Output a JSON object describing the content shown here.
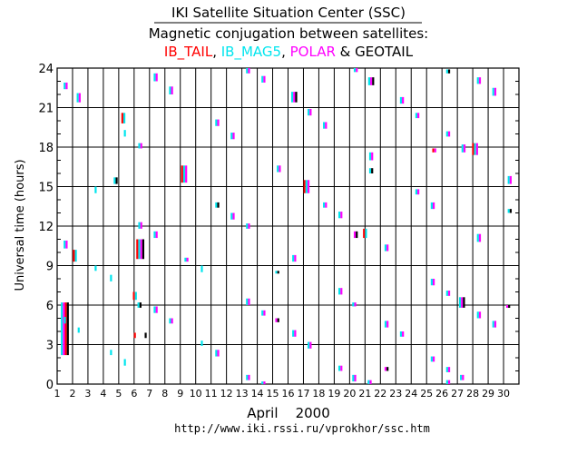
{
  "header": {
    "title": "IKI Satellite Situation Center (SSC)",
    "subtitle": "Magnetic conjugation between satellites:",
    "legend_sep1": ",",
    "legend_sep2": ",",
    "legend_amp": " & "
  },
  "chart_data": {
    "type": "scatter",
    "xlabel": "April    2000",
    "ylabel": "Universal time  (hours)",
    "footer_url": "http://www.iki.rssi.ru/vprokhor/ssc.htm",
    "xlim": [
      1,
      31
    ],
    "ylim": [
      0,
      24
    ],
    "xticks": [
      1,
      2,
      3,
      4,
      5,
      6,
      7,
      8,
      9,
      10,
      11,
      12,
      13,
      14,
      15,
      16,
      17,
      18,
      19,
      20,
      21,
      22,
      23,
      24,
      25,
      26,
      27,
      28,
      29,
      30
    ],
    "yticks": [
      0,
      3,
      6,
      9,
      12,
      15,
      18,
      21,
      24
    ],
    "grid": true,
    "series": [
      {
        "name": "IB_TAIL",
        "color": "#ff0000"
      },
      {
        "name": "IB_MAG5",
        "color": "#00e5ee"
      },
      {
        "name": "POLAR",
        "color": "#ff00ff"
      },
      {
        "name": "GEOTAIL",
        "color": "#000000"
      }
    ],
    "events": [
      {
        "day": 1.5,
        "start": 2.2,
        "end": 6.2,
        "sats": [
          "IB_MAG5",
          "POLAR",
          "IB_TAIL",
          "GEOTAIL"
        ]
      },
      {
        "day": 1.5,
        "start": 4.6,
        "end": 5.1,
        "sats": [
          "IB_MAG5"
        ]
      },
      {
        "day": 1.55,
        "start": 10.3,
        "end": 10.9,
        "sats": [
          "IB_MAG5",
          "POLAR"
        ]
      },
      {
        "day": 1.55,
        "start": 22.4,
        "end": 22.9,
        "sats": [
          "IB_MAG5",
          "POLAR"
        ]
      },
      {
        "day": 2.15,
        "start": 9.3,
        "end": 10.2,
        "sats": [
          "IB_TAIL",
          "IB_MAG5"
        ]
      },
      {
        "day": 2.4,
        "start": 3.9,
        "end": 4.3,
        "sats": [
          "IB_MAG5"
        ]
      },
      {
        "day": 2.4,
        "start": 21.4,
        "end": 22.1,
        "sats": [
          "IB_MAG5",
          "POLAR"
        ]
      },
      {
        "day": 3.5,
        "start": 8.6,
        "end": 9.0,
        "sats": [
          "IB_MAG5"
        ]
      },
      {
        "day": 3.5,
        "start": 14.5,
        "end": 15.0,
        "sats": [
          "IB_MAG5"
        ]
      },
      {
        "day": 4.5,
        "start": 2.2,
        "end": 2.6,
        "sats": [
          "IB_MAG5"
        ]
      },
      {
        "day": 4.5,
        "start": 7.8,
        "end": 8.3,
        "sats": [
          "IB_MAG5"
        ]
      },
      {
        "day": 4.8,
        "start": 15.2,
        "end": 15.7,
        "sats": [
          "IB_MAG5",
          "GEOTAIL"
        ]
      },
      {
        "day": 5.3,
        "start": 19.8,
        "end": 20.6,
        "sats": [
          "IB_TAIL",
          "IB_MAG5"
        ]
      },
      {
        "day": 5.4,
        "start": 1.4,
        "end": 1.9,
        "sats": [
          "IB_MAG5"
        ]
      },
      {
        "day": 5.4,
        "start": 18.8,
        "end": 19.3,
        "sats": [
          "IB_MAG5"
        ]
      },
      {
        "day": 6.05,
        "start": 6.4,
        "end": 7.0,
        "sats": [
          "IB_TAIL",
          "IB_MAG5"
        ]
      },
      {
        "day": 6.05,
        "start": 3.5,
        "end": 3.9,
        "sats": [
          "IB_TAIL"
        ]
      },
      {
        "day": 6.35,
        "start": 5.8,
        "end": 6.2,
        "sats": [
          "IB_MAG5",
          "GEOTAIL"
        ]
      },
      {
        "day": 6.4,
        "start": 9.5,
        "end": 11.0,
        "sats": [
          "IB_TAIL",
          "IB_MAG5",
          "POLAR",
          "GEOTAIL"
        ]
      },
      {
        "day": 6.4,
        "start": 11.8,
        "end": 12.3,
        "sats": [
          "IB_MAG5",
          "POLAR"
        ]
      },
      {
        "day": 6.4,
        "start": 17.9,
        "end": 18.3,
        "sats": [
          "IB_MAG5",
          "POLAR"
        ]
      },
      {
        "day": 6.75,
        "start": 3.5,
        "end": 3.9,
        "sats": [
          "GEOTAIL"
        ]
      },
      {
        "day": 7.4,
        "start": 5.4,
        "end": 5.9,
        "sats": [
          "IB_MAG5",
          "POLAR"
        ]
      },
      {
        "day": 7.4,
        "start": 11.1,
        "end": 11.6,
        "sats": [
          "IB_MAG5",
          "POLAR"
        ]
      },
      {
        "day": 7.4,
        "start": 23.0,
        "end": 23.6,
        "sats": [
          "IB_MAG5",
          "POLAR"
        ]
      },
      {
        "day": 8.4,
        "start": 4.6,
        "end": 5.0,
        "sats": [
          "IB_MAG5",
          "POLAR"
        ]
      },
      {
        "day": 8.4,
        "start": 22.0,
        "end": 22.6,
        "sats": [
          "IB_MAG5",
          "POLAR"
        ]
      },
      {
        "day": 9.25,
        "start": 15.3,
        "end": 16.6,
        "sats": [
          "IB_TAIL",
          "IB_MAG5",
          "POLAR"
        ]
      },
      {
        "day": 9.4,
        "start": 9.3,
        "end": 9.6,
        "sats": [
          "IB_MAG5",
          "POLAR"
        ]
      },
      {
        "day": 10.4,
        "start": 8.5,
        "end": 9.0,
        "sats": [
          "IB_MAG5"
        ]
      },
      {
        "day": 10.4,
        "start": 2.9,
        "end": 3.3,
        "sats": [
          "IB_MAG5"
        ]
      },
      {
        "day": 11.4,
        "start": 2.1,
        "end": 2.6,
        "sats": [
          "IB_MAG5",
          "POLAR"
        ]
      },
      {
        "day": 11.4,
        "start": 13.4,
        "end": 13.8,
        "sats": [
          "IB_MAG5",
          "GEOTAIL"
        ]
      },
      {
        "day": 11.4,
        "start": 19.6,
        "end": 20.1,
        "sats": [
          "IB_MAG5",
          "POLAR"
        ]
      },
      {
        "day": 12.4,
        "start": 12.5,
        "end": 13.0,
        "sats": [
          "IB_MAG5",
          "POLAR"
        ]
      },
      {
        "day": 12.4,
        "start": 18.6,
        "end": 19.1,
        "sats": [
          "IB_MAG5",
          "POLAR"
        ]
      },
      {
        "day": 13.4,
        "start": 6.0,
        "end": 6.5,
        "sats": [
          "IB_MAG5",
          "POLAR"
        ]
      },
      {
        "day": 13.4,
        "start": 11.8,
        "end": 12.2,
        "sats": [
          "IB_MAG5",
          "POLAR"
        ]
      },
      {
        "day": 13.4,
        "start": 0.3,
        "end": 0.7,
        "sats": [
          "IB_MAG5",
          "POLAR"
        ]
      },
      {
        "day": 13.4,
        "start": 23.6,
        "end": 24.0,
        "sats": [
          "IB_MAG5",
          "POLAR"
        ]
      },
      {
        "day": 14.4,
        "start": 5.2,
        "end": 5.6,
        "sats": [
          "IB_MAG5",
          "POLAR"
        ]
      },
      {
        "day": 14.4,
        "start": 22.9,
        "end": 23.4,
        "sats": [
          "IB_MAG5",
          "POLAR"
        ]
      },
      {
        "day": 14.4,
        "start": 0.0,
        "end": 0.2,
        "sats": [
          "IB_MAG5",
          "POLAR"
        ]
      },
      {
        "day": 15.3,
        "start": 8.4,
        "end": 8.6,
        "sats": [
          "IB_MAG5",
          "GEOTAIL"
        ]
      },
      {
        "day": 15.3,
        "start": 4.7,
        "end": 5.0,
        "sats": [
          "POLAR",
          "GEOTAIL"
        ]
      },
      {
        "day": 15.4,
        "start": 16.1,
        "end": 16.6,
        "sats": [
          "IB_MAG5",
          "POLAR"
        ]
      },
      {
        "day": 16.4,
        "start": 3.6,
        "end": 4.1,
        "sats": [
          "IB_MAG5",
          "POLAR"
        ]
      },
      {
        "day": 16.4,
        "start": 9.3,
        "end": 9.8,
        "sats": [
          "IB_MAG5",
          "POLAR"
        ]
      },
      {
        "day": 16.4,
        "start": 21.4,
        "end": 22.2,
        "sats": [
          "IB_MAG5",
          "POLAR",
          "GEOTAIL"
        ]
      },
      {
        "day": 17.2,
        "start": 14.5,
        "end": 15.5,
        "sats": [
          "IB_TAIL",
          "IB_MAG5",
          "POLAR"
        ]
      },
      {
        "day": 17.4,
        "start": 2.7,
        "end": 3.2,
        "sats": [
          "IB_MAG5",
          "POLAR"
        ]
      },
      {
        "day": 17.4,
        "start": 20.4,
        "end": 20.9,
        "sats": [
          "IB_MAG5",
          "POLAR"
        ]
      },
      {
        "day": 18.4,
        "start": 13.4,
        "end": 13.8,
        "sats": [
          "IB_MAG5",
          "POLAR"
        ]
      },
      {
        "day": 18.4,
        "start": 19.4,
        "end": 19.9,
        "sats": [
          "IB_MAG5",
          "POLAR"
        ]
      },
      {
        "day": 19.4,
        "start": 1.0,
        "end": 1.4,
        "sats": [
          "IB_MAG5",
          "POLAR"
        ]
      },
      {
        "day": 19.4,
        "start": 6.8,
        "end": 7.3,
        "sats": [
          "IB_MAG5",
          "POLAR"
        ]
      },
      {
        "day": 19.4,
        "start": 12.6,
        "end": 13.1,
        "sats": [
          "IB_MAG5",
          "POLAR"
        ]
      },
      {
        "day": 20.3,
        "start": 0.2,
        "end": 0.7,
        "sats": [
          "IB_MAG5",
          "POLAR"
        ]
      },
      {
        "day": 20.3,
        "start": 5.9,
        "end": 6.2,
        "sats": [
          "IB_MAG5",
          "POLAR"
        ]
      },
      {
        "day": 20.4,
        "start": 11.1,
        "end": 11.6,
        "sats": [
          "POLAR",
          "GEOTAIL"
        ]
      },
      {
        "day": 20.4,
        "start": 23.7,
        "end": 24.0,
        "sats": [
          "IB_MAG5",
          "POLAR"
        ]
      },
      {
        "day": 21.0,
        "start": 11.1,
        "end": 11.8,
        "sats": [
          "IB_TAIL",
          "IB_MAG5"
        ]
      },
      {
        "day": 21.3,
        "start": 0.0,
        "end": 0.3,
        "sats": [
          "IB_MAG5",
          "POLAR"
        ]
      },
      {
        "day": 21.4,
        "start": 16.0,
        "end": 16.4,
        "sats": [
          "IB_MAG5",
          "GEOTAIL"
        ]
      },
      {
        "day": 21.4,
        "start": 17.0,
        "end": 17.6,
        "sats": [
          "IB_MAG5",
          "POLAR"
        ]
      },
      {
        "day": 21.4,
        "start": 22.7,
        "end": 23.3,
        "sats": [
          "IB_MAG5",
          "POLAR",
          "GEOTAIL"
        ]
      },
      {
        "day": 22.4,
        "start": 4.3,
        "end": 4.8,
        "sats": [
          "IB_MAG5",
          "POLAR"
        ]
      },
      {
        "day": 22.4,
        "start": 10.1,
        "end": 10.6,
        "sats": [
          "IB_MAG5",
          "POLAR"
        ]
      },
      {
        "day": 22.4,
        "start": 1.0,
        "end": 1.3,
        "sats": [
          "POLAR",
          "GEOTAIL"
        ]
      },
      {
        "day": 23.4,
        "start": 3.6,
        "end": 4.0,
        "sats": [
          "IB_MAG5",
          "POLAR"
        ]
      },
      {
        "day": 23.4,
        "start": 21.3,
        "end": 21.8,
        "sats": [
          "IB_MAG5",
          "POLAR"
        ]
      },
      {
        "day": 24.4,
        "start": 14.4,
        "end": 14.8,
        "sats": [
          "IB_MAG5",
          "POLAR"
        ]
      },
      {
        "day": 24.4,
        "start": 20.2,
        "end": 20.6,
        "sats": [
          "IB_MAG5",
          "POLAR"
        ]
      },
      {
        "day": 25.4,
        "start": 1.7,
        "end": 2.1,
        "sats": [
          "IB_MAG5",
          "POLAR"
        ]
      },
      {
        "day": 25.4,
        "start": 7.5,
        "end": 8.0,
        "sats": [
          "IB_MAG5",
          "POLAR"
        ]
      },
      {
        "day": 25.4,
        "start": 13.3,
        "end": 13.8,
        "sats": [
          "IB_MAG5",
          "POLAR"
        ]
      },
      {
        "day": 25.5,
        "start": 17.6,
        "end": 17.9,
        "sats": [
          "IB_TAIL",
          "POLAR"
        ]
      },
      {
        "day": 26.4,
        "start": 0.9,
        "end": 1.3,
        "sats": [
          "IB_MAG5",
          "POLAR"
        ]
      },
      {
        "day": 26.4,
        "start": 6.7,
        "end": 7.1,
        "sats": [
          "IB_MAG5",
          "POLAR"
        ]
      },
      {
        "day": 26.4,
        "start": 18.8,
        "end": 19.2,
        "sats": [
          "IB_MAG5",
          "POLAR"
        ]
      },
      {
        "day": 26.4,
        "start": 0.0,
        "end": 0.3,
        "sats": [
          "IB_MAG5",
          "POLAR"
        ]
      },
      {
        "day": 26.4,
        "start": 23.6,
        "end": 23.9,
        "sats": [
          "IB_MAG5",
          "GEOTAIL"
        ]
      },
      {
        "day": 27.3,
        "start": 0.3,
        "end": 0.7,
        "sats": [
          "IB_MAG5",
          "POLAR"
        ]
      },
      {
        "day": 27.3,
        "start": 5.8,
        "end": 6.6,
        "sats": [
          "IB_MAG5",
          "POLAR",
          "GEOTAIL"
        ]
      },
      {
        "day": 27.4,
        "start": 17.6,
        "end": 18.2,
        "sats": [
          "IB_MAG5",
          "POLAR"
        ]
      },
      {
        "day": 28.15,
        "start": 17.4,
        "end": 18.3,
        "sats": [
          "IB_TAIL",
          "IB_MAG5",
          "POLAR"
        ]
      },
      {
        "day": 28.4,
        "start": 5.0,
        "end": 5.5,
        "sats": [
          "IB_MAG5",
          "POLAR"
        ]
      },
      {
        "day": 28.4,
        "start": 10.8,
        "end": 11.4,
        "sats": [
          "IB_MAG5",
          "POLAR"
        ]
      },
      {
        "day": 28.4,
        "start": 22.8,
        "end": 23.3,
        "sats": [
          "IB_MAG5",
          "POLAR"
        ]
      },
      {
        "day": 29.4,
        "start": 4.3,
        "end": 4.8,
        "sats": [
          "IB_MAG5",
          "POLAR"
        ]
      },
      {
        "day": 29.4,
        "start": 21.9,
        "end": 22.5,
        "sats": [
          "IB_MAG5",
          "POLAR"
        ]
      },
      {
        "day": 30.3,
        "start": 5.8,
        "end": 6.0,
        "sats": [
          "POLAR",
          "GEOTAIL"
        ]
      },
      {
        "day": 30.4,
        "start": 13.0,
        "end": 13.3,
        "sats": [
          "IB_MAG5",
          "GEOTAIL"
        ]
      },
      {
        "day": 30.4,
        "start": 15.2,
        "end": 15.8,
        "sats": [
          "IB_MAG5",
          "POLAR"
        ]
      }
    ]
  }
}
